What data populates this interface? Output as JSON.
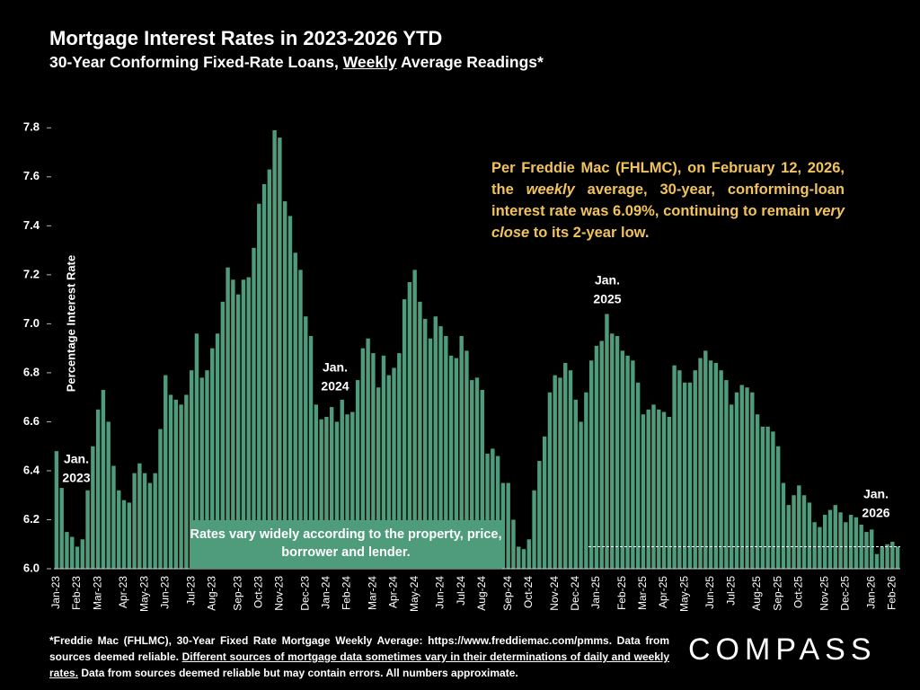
{
  "chart_data": {
    "type": "bar",
    "title": "Mortgage Interest Rates in 2023-2026 YTD",
    "subtitle_parts": [
      "30-Year Conforming Fixed-Rate Loans, ",
      "Weekly",
      " Average Readings*"
    ],
    "y_label": "Percentage Interest Rate",
    "color": "#4e9c7c",
    "ylim": [
      6.0,
      7.9
    ],
    "yticks": [
      {
        "value": 6,
        "label": "6.0"
      },
      6.2,
      6.4,
      6.6,
      6.8,
      {
        "value": 7,
        "label": "7.0"
      },
      7.2,
      7.4,
      7.6,
      7.8
    ],
    "categories": [
      "Jan-23",
      null,
      null,
      null,
      "Feb-23",
      null,
      null,
      null,
      "Mar-23",
      null,
      null,
      null,
      null,
      "Apr-23",
      null,
      null,
      null,
      "May-23",
      null,
      null,
      null,
      "Jun-23",
      null,
      null,
      null,
      null,
      "Jul-23",
      null,
      null,
      null,
      "Aug-23",
      null,
      null,
      null,
      null,
      "Sep-23",
      null,
      null,
      null,
      "Oct-23",
      null,
      null,
      null,
      "Nov-23",
      null,
      null,
      null,
      null,
      "Dec-23",
      null,
      null,
      null,
      "Jan-24",
      null,
      null,
      null,
      "Feb-24",
      null,
      null,
      null,
      null,
      "Mar-24",
      null,
      null,
      null,
      "Apr-24",
      null,
      null,
      null,
      "May-24",
      null,
      null,
      null,
      null,
      "Jun-24",
      null,
      null,
      null,
      "Jul-24",
      null,
      null,
      null,
      "Aug-24",
      null,
      null,
      null,
      null,
      "Sep-24",
      null,
      null,
      null,
      "Oct-24",
      null,
      null,
      null,
      null,
      "Nov-24",
      null,
      null,
      null,
      "Dec-24",
      null,
      null,
      null,
      "Jan-25",
      null,
      null,
      null,
      null,
      "Feb-25",
      null,
      null,
      null,
      "Mar-25",
      null,
      null,
      null,
      "Apr-25",
      null,
      null,
      null,
      "May-25",
      null,
      null,
      null,
      null,
      "Jun-25",
      null,
      null,
      null,
      "Jul-25",
      null,
      null,
      null,
      null,
      "Aug-25",
      null,
      null,
      null,
      "Sep-25",
      null,
      null,
      null,
      "Oct-25",
      null,
      null,
      null,
      null,
      "Nov-25",
      null,
      null,
      null,
      "Dec-25",
      null,
      null,
      null,
      null,
      "Jan-26",
      null,
      null,
      null,
      "Feb-26",
      null
    ],
    "values": [
      6.48,
      6.33,
      6.15,
      6.13,
      6.09,
      6.12,
      6.32,
      6.5,
      6.65,
      6.73,
      6.6,
      6.42,
      6.32,
      6.28,
      6.27,
      6.39,
      6.43,
      6.39,
      6.35,
      6.39,
      6.57,
      6.79,
      6.71,
      6.69,
      6.67,
      6.71,
      6.81,
      6.96,
      6.78,
      6.81,
      6.9,
      6.96,
      7.09,
      7.23,
      7.18,
      7.12,
      7.18,
      7.19,
      7.31,
      7.49,
      7.57,
      7.63,
      7.79,
      7.76,
      7.5,
      7.44,
      7.29,
      7.22,
      7.03,
      6.95,
      6.67,
      6.61,
      6.62,
      6.66,
      6.6,
      6.69,
      6.63,
      6.64,
      6.77,
      6.9,
      6.94,
      6.88,
      6.74,
      6.87,
      6.79,
      6.82,
      6.88,
      7.1,
      7.17,
      7.22,
      7.09,
      7.02,
      6.94,
      7.03,
      6.99,
      6.95,
      6.87,
      6.86,
      6.95,
      6.89,
      6.77,
      6.78,
      6.73,
      6.47,
      6.49,
      6.46,
      6.35,
      6.35,
      6.2,
      6.09,
      6.08,
      6.12,
      6.32,
      6.44,
      6.54,
      6.72,
      6.79,
      6.78,
      6.84,
      6.81,
      6.69,
      6.6,
      6.72,
      6.85,
      6.91,
      6.93,
      7.04,
      6.96,
      6.95,
      6.89,
      6.87,
      6.85,
      6.76,
      6.63,
      6.65,
      6.67,
      6.65,
      6.64,
      6.62,
      6.83,
      6.81,
      6.76,
      6.76,
      6.81,
      6.86,
      6.89,
      6.85,
      6.84,
      6.81,
      6.77,
      6.67,
      6.72,
      6.75,
      6.74,
      6.72,
      6.63,
      6.58,
      6.58,
      6.56,
      6.5,
      6.35,
      6.26,
      6.3,
      6.34,
      6.3,
      6.27,
      6.19,
      6.17,
      6.22,
      6.24,
      6.26,
      6.23,
      6.19,
      6.22,
      6.21,
      6.18,
      6.15,
      6.16,
      6.06,
      6.09,
      6.1,
      6.11,
      6.09
    ],
    "reference_line": 6.09,
    "annotations": [
      [
        "Jan.",
        "2023"
      ],
      [
        "Jan.",
        "2024"
      ],
      [
        "Jan.",
        "2025"
      ],
      [
        "Jan.",
        "2026"
      ]
    ],
    "callout_parts": [
      "Per Freddie Mac (FHLMC), on February 12, 2026, the ",
      "weekly",
      " average, 30-year, conforming-loan interest rate was 6.09%, continuing to remain ",
      "very close",
      " to its 2-year low."
    ],
    "note": "Rates vary widely according to the property, price, borrower and lender.",
    "footnote_parts": [
      "*Freddie Mac (FHLMC), 30-Year Fixed Rate Mortgage Weekly Average: https://www.freddiemac.com/pmms. Data from sources deemed reliable. ",
      "Different sources of mortgage data sometimes vary in their determinations of daily and weekly rates.",
      " Data from sources deemed reliable but may contain errors. All numbers approximate."
    ],
    "logo": "COMPASS"
  }
}
